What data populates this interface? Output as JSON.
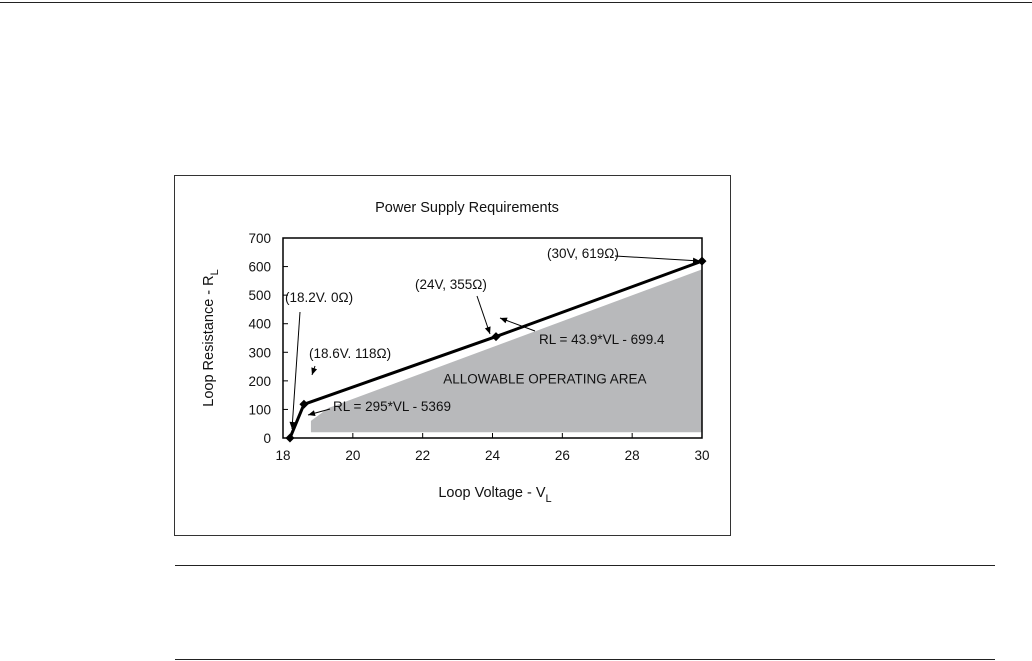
{
  "chart_data": {
    "type": "line",
    "title": "Power Supply Requirements",
    "xlabel": "Loop Voltage - V",
    "xlabel_sub": "L",
    "ylabel": "Loop Resistance - R",
    "ylabel_sub": "L",
    "xlim": [
      18,
      30
    ],
    "ylim": [
      0,
      700
    ],
    "x_ticks": [
      "18",
      "20",
      "22",
      "24",
      "26",
      "28",
      "30"
    ],
    "y_ticks": [
      "0",
      "100",
      "200",
      "300",
      "400",
      "500",
      "600",
      "700"
    ],
    "grid": false,
    "series": [
      {
        "x": [
          18.2,
          18.6,
          24.1,
          30
        ],
        "y": [
          0,
          118,
          355,
          619
        ],
        "line_color": "#000000",
        "marker": "diamond"
      }
    ],
    "shaded_region": {
      "label": "ALLOWABLE OPERATING AREA",
      "color": "#b8b9bb",
      "polygon": [
        [
          18.8,
          20
        ],
        [
          18.8,
          60
        ],
        [
          19.3,
          105
        ],
        [
          30,
          590
        ],
        [
          30,
          20
        ]
      ]
    },
    "annotations": [
      {
        "text": "(18.2V. 0Ω)",
        "x": 18.2,
        "y": 0
      },
      {
        "text": "(18.6V. 118Ω)",
        "x": 18.6,
        "y": 118
      },
      {
        "text": "(24V, 355Ω)",
        "x": 24.1,
        "y": 355
      },
      {
        "text": "(30V, 619Ω)",
        "x": 30,
        "y": 619
      },
      {
        "text": "RL = 43.9*VL - 699.4"
      },
      {
        "text": "RL = 295*VL - 5369"
      }
    ]
  }
}
